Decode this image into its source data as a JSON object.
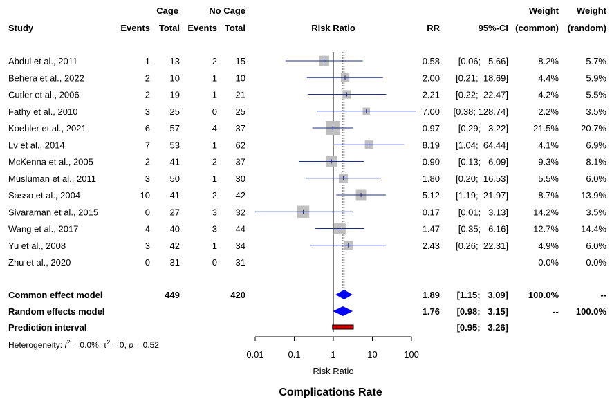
{
  "chart_data": {
    "type": "forest",
    "title": "Complications Rate",
    "header": {
      "group_top_cage": "Cage",
      "group_top_nocage": "No Cage",
      "weight_top_common": "Weight",
      "weight_top_random": "Weight",
      "study": "Study",
      "events1": "Events",
      "total1": "Total",
      "events2": "Events",
      "total2": "Total",
      "plot": "Risk Ratio",
      "rr": "RR",
      "ci": "95%-CI",
      "w_common": "(common)",
      "w_random": "(random)"
    },
    "x_axis": {
      "label": "Risk Ratio",
      "scale": "log",
      "ticks": [
        0.01,
        0.1,
        1,
        10,
        100
      ],
      "tick_labels": [
        "0.01",
        "0.1",
        "1",
        "10",
        "100"
      ],
      "range": [
        0.01,
        100
      ]
    },
    "studies": [
      {
        "name": "Abdul et al., 2011",
        "e1": "1",
        "n1": "13",
        "e2": "2",
        "n2": "15",
        "rr": 0.58,
        "lo": 0.06,
        "hi": 5.66,
        "rr_text": "0.58",
        "ci_text": "[0.06;   5.66]",
        "w_common": 8.2,
        "w_common_text": "8.2%",
        "w_random_text": "5.7%"
      },
      {
        "name": "Behera et al., 2022",
        "e1": "2",
        "n1": "10",
        "e2": "1",
        "n2": "10",
        "rr": 2.0,
        "lo": 0.21,
        "hi": 18.69,
        "rr_text": "2.00",
        "ci_text": "[0.21;  18.69]",
        "w_common": 4.4,
        "w_common_text": "4.4%",
        "w_random_text": "5.9%"
      },
      {
        "name": "Cutler et al., 2006",
        "e1": "2",
        "n1": "19",
        "e2": "1",
        "n2": "21",
        "rr": 2.21,
        "lo": 0.22,
        "hi": 22.47,
        "rr_text": "2.21",
        "ci_text": "[0.22;  22.47]",
        "w_common": 4.2,
        "w_common_text": "4.2%",
        "w_random_text": "5.5%"
      },
      {
        "name": "Fathy et al., 2010",
        "e1": "3",
        "n1": "25",
        "e2": "0",
        "n2": "25",
        "rr": 7.0,
        "lo": 0.38,
        "hi": 128.74,
        "rr_text": "7.00",
        "ci_text": "[0.38; 128.74]",
        "w_common": 2.2,
        "w_common_text": "2.2%",
        "w_random_text": "3.5%"
      },
      {
        "name": "Koehler et al., 2021",
        "e1": "6",
        "n1": "57",
        "e2": "4",
        "n2": "37",
        "rr": 0.97,
        "lo": 0.29,
        "hi": 3.22,
        "rr_text": "0.97",
        "ci_text": "[0.29;   3.22]",
        "w_common": 21.5,
        "w_common_text": "21.5%",
        "w_random_text": "20.7%"
      },
      {
        "name": "Lv et al., 2014",
        "e1": "7",
        "n1": "53",
        "e2": "1",
        "n2": "62",
        "rr": 8.19,
        "lo": 1.04,
        "hi": 64.44,
        "rr_text": "8.19",
        "ci_text": "[1.04;  64.44]",
        "w_common": 4.1,
        "w_common_text": "4.1%",
        "w_random_text": "6.9%"
      },
      {
        "name": "McKenna et al., 2005",
        "e1": "2",
        "n1": "41",
        "e2": "2",
        "n2": "37",
        "rr": 0.9,
        "lo": 0.13,
        "hi": 6.09,
        "rr_text": "0.90",
        "ci_text": "[0.13;   6.09]",
        "w_common": 9.3,
        "w_common_text": "9.3%",
        "w_random_text": "8.1%"
      },
      {
        "name": "Müslüman et al., 2011",
        "e1": "3",
        "n1": "50",
        "e2": "1",
        "n2": "30",
        "rr": 1.8,
        "lo": 0.2,
        "hi": 16.53,
        "rr_text": "1.80",
        "ci_text": "[0.20;  16.53]",
        "w_common": 5.5,
        "w_common_text": "5.5%",
        "w_random_text": "6.0%"
      },
      {
        "name": "Sasso et al., 2004",
        "e1": "10",
        "n1": "41",
        "e2": "2",
        "n2": "42",
        "rr": 5.12,
        "lo": 1.19,
        "hi": 21.97,
        "rr_text": "5.12",
        "ci_text": "[1.19;  21.97]",
        "w_common": 8.7,
        "w_common_text": "8.7%",
        "w_random_text": "13.9%"
      },
      {
        "name": "Sivaraman et al., 2015",
        "e1": "0",
        "n1": "27",
        "e2": "3",
        "n2": "32",
        "rr": 0.17,
        "lo": 0.01,
        "hi": 3.13,
        "rr_text": "0.17",
        "ci_text": "[0.01;   3.13]",
        "w_common": 14.2,
        "w_common_text": "14.2%",
        "w_random_text": "3.5%"
      },
      {
        "name": "Wang et al., 2017",
        "e1": "4",
        "n1": "40",
        "e2": "3",
        "n2": "44",
        "rr": 1.47,
        "lo": 0.35,
        "hi": 6.16,
        "rr_text": "1.47",
        "ci_text": "[0.35;   6.16]",
        "w_common": 12.7,
        "w_common_text": "12.7%",
        "w_random_text": "14.4%"
      },
      {
        "name": "Yu et al., 2008",
        "e1": "3",
        "n1": "42",
        "e2": "1",
        "n2": "34",
        "rr": 2.43,
        "lo": 0.26,
        "hi": 22.31,
        "rr_text": "2.43",
        "ci_text": "[0.26;  22.31]",
        "w_common": 4.9,
        "w_common_text": "4.9%",
        "w_random_text": "6.0%"
      },
      {
        "name": "Zhu et al., 2020",
        "e1": "0",
        "n1": "31",
        "e2": "0",
        "n2": "31",
        "rr": null,
        "lo": null,
        "hi": null,
        "rr_text": "",
        "ci_text": "",
        "w_common": 0,
        "w_common_text": "0.0%",
        "w_random_text": "0.0%"
      }
    ],
    "pooled": [
      {
        "name": "Common effect model",
        "n1": "449",
        "n2": "420",
        "rr": 1.89,
        "lo": 1.15,
        "hi": 3.09,
        "rr_text": "1.89",
        "ci_text": "[1.15;   3.09]",
        "w_common_text": "100.0%",
        "w_random_text": "--"
      },
      {
        "name": "Random effects model",
        "n1": "",
        "n2": "",
        "rr": 1.76,
        "lo": 0.98,
        "hi": 3.15,
        "rr_text": "1.76",
        "ci_text": "[0.98;   3.15]",
        "w_common_text": "--",
        "w_random_text": "100.0%"
      }
    ],
    "prediction": {
      "name": "Prediction interval",
      "lo": 0.95,
      "hi": 3.26,
      "ci_text": "[0.95;   3.26]"
    },
    "heterogeneity": {
      "label": "Heterogeneity: ",
      "i2_sym": "I",
      "i2_sup": "2",
      "i2_val": " = 0.0%, ",
      "tau_sym": "τ",
      "tau_sup": "2",
      "tau_val": " = 0, ",
      "p_sym": "p",
      "p_val": " = 0.52"
    },
    "colors": {
      "square": "#bfbfbf",
      "ci_line": "#1f2f8f",
      "diamond": "#0000ff",
      "prediction": "#cc0000",
      "axis": "#000000"
    }
  }
}
